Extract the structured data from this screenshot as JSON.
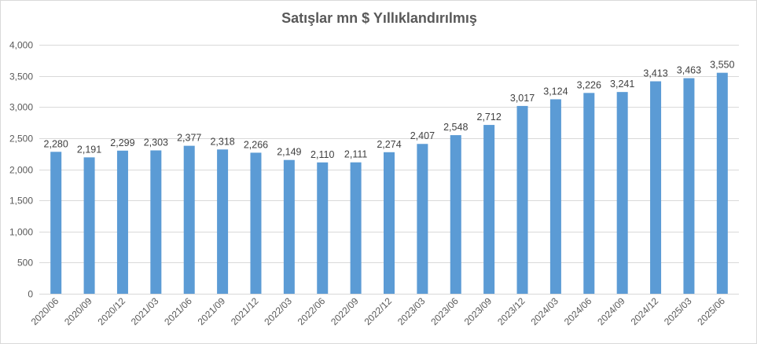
{
  "chart_data": {
    "type": "bar",
    "title": "Satışlar mn $ Yıllıklandırılmış",
    "xlabel": "",
    "ylabel": "",
    "ylim": [
      0,
      4000
    ],
    "yticks": [
      "0",
      "500",
      "1,000",
      "1,500",
      "2,000",
      "2,500",
      "3,000",
      "3,500",
      "4,000"
    ],
    "grid": true,
    "bar_color": "#5b9bd5",
    "categories": [
      "2020/06",
      "2020/09",
      "2020/12",
      "2021/03",
      "2021/06",
      "2021/09",
      "2021/12",
      "2022/03",
      "2022/06",
      "2022/09",
      "2022/12",
      "2023/03",
      "2023/06",
      "2023/09",
      "2023/12",
      "2024/03",
      "2024/06",
      "2024/09",
      "2024/12",
      "2025/03",
      "2025/06"
    ],
    "values": [
      2280,
      2191,
      2299,
      2303,
      2377,
      2318,
      2266,
      2149,
      2110,
      2111,
      2274,
      2407,
      2548,
      2712,
      3017,
      3124,
      3226,
      3241,
      3413,
      3463,
      3550
    ],
    "data_labels": [
      "2,280",
      "2,191",
      "2,299",
      "2,303",
      "2,377",
      "2,318",
      "2,266",
      "2,149",
      "2,110",
      "2,111",
      "2,274",
      "2,407",
      "2,548",
      "2,712",
      "3,017",
      "3,124",
      "3,226",
      "3,241",
      "3,413",
      "3,463",
      "3,550"
    ]
  }
}
